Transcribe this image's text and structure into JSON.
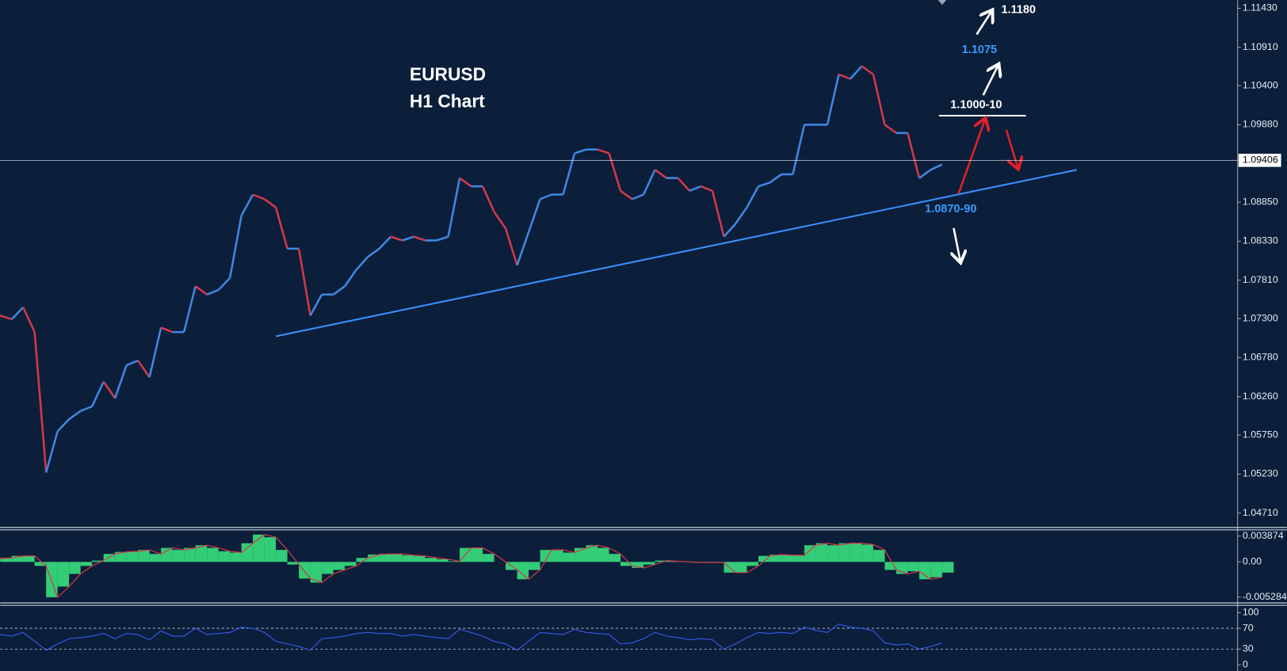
{
  "chart_data": [
    {
      "type": "line",
      "title": "EURUSD",
      "subtitle": "H1 Chart",
      "annotations": [
        "1.1180",
        "1.1075",
        "1.1000-10",
        "1.0870-90"
      ],
      "current_price": 1.09406,
      "ylim": [
        1.0452,
        1.1154
      ],
      "yticks": [
        {
          "value": 1.1143,
          "label": "1.11430"
        },
        {
          "value": 1.1091,
          "label": "1.10910"
        },
        {
          "value": 1.104,
          "label": "1.10400"
        },
        {
          "value": 1.0988,
          "label": "1.09880"
        },
        {
          "value": 1.0885,
          "label": "1.08850"
        },
        {
          "value": 1.0833,
          "label": "1.08330"
        },
        {
          "value": 1.0781,
          "label": "1.07810"
        },
        {
          "value": 1.073,
          "label": "1.07300"
        },
        {
          "value": 1.0678,
          "label": "1.06780"
        },
        {
          "value": 1.0626,
          "label": "1.06260"
        },
        {
          "value": 1.0575,
          "label": "1.05750"
        },
        {
          "value": 1.0523,
          "label": "1.05230"
        },
        {
          "value": 1.0471,
          "label": "1.04710"
        }
      ],
      "series": [
        {
          "up_color": "#3f86e0",
          "down_color": "#d0394a",
          "values": [
            1.0734,
            1.0729,
            1.0745,
            1.0712,
            1.0525,
            1.058,
            1.0596,
            1.0607,
            1.0613,
            1.0646,
            1.0624,
            1.0668,
            1.0674,
            1.0652,
            1.0718,
            1.0712,
            1.0712,
            1.0773,
            1.0762,
            1.0768,
            1.0784,
            1.0867,
            1.0895,
            1.0889,
            1.0878,
            1.0823,
            1.0823,
            1.0734,
            1.0762,
            1.0762,
            1.0773,
            1.0795,
            1.0812,
            1.0823,
            1.0839,
            1.0834,
            1.0839,
            1.0834,
            1.0834,
            1.0839,
            1.0917,
            1.0906,
            1.0906,
            1.0872,
            1.085,
            1.0801,
            1.0845,
            1.0889,
            1.0895,
            1.0895,
            1.095,
            1.0955,
            1.0955,
            1.095,
            1.09,
            1.0889,
            1.0895,
            1.0928,
            1.0917,
            1.0917,
            1.09,
            1.0906,
            1.09,
            1.0839,
            1.0856,
            1.0878,
            1.0906,
            1.0911,
            1.0922,
            1.0922,
            1.0988,
            1.0988,
            1.0988,
            1.1055,
            1.1049,
            1.1066,
            1.1055,
            1.0988,
            1.0977,
            1.0977,
            1.0917,
            1.0928,
            1.0935
          ]
        }
      ]
    },
    {
      "type": "bar",
      "ylim": [
        -0.00615,
        0.0048
      ],
      "yticks": [
        0.003874,
        {
          "value": 0,
          "label": "0.00"
        },
        -0.005284
      ],
      "series": [
        {
          "color": "#33cc77",
          "values": [
            0.0006,
            0.0009,
            0.0009,
            -0.0006,
            -0.0053,
            -0.0037,
            -0.0018,
            -0.0006,
            0.0002,
            0.0012,
            0.0015,
            0.0016,
            0.0018,
            0.0012,
            0.0021,
            0.0018,
            0.0021,
            0.0025,
            0.0021,
            0.0016,
            0.0014,
            0.0028,
            0.0041,
            0.0037,
            0.0018,
            -0.0004,
            -0.0025,
            -0.0031,
            -0.0018,
            -0.0012,
            -0.0006,
            0.0006,
            0.0011,
            0.0012,
            0.0012,
            0.001,
            0.0009,
            0.0006,
            0.0004,
            0.0001,
            0.0021,
            0.0021,
            0.0012,
            0,
            -0.0012,
            -0.0026,
            -0.0012,
            0.0018,
            0.0018,
            0.0014,
            0.0021,
            0.0025,
            0.0021,
            0.0012,
            -0.0006,
            -0.0009,
            -0.0004,
            0.0002,
            0.0001,
            0,
            -0.0001,
            -0.0001,
            -0.0001,
            -0.0016,
            -0.0016,
            -0.0006,
            0.0009,
            0.0011,
            0.001,
            0.001,
            0.0025,
            0.0028,
            0.0025,
            0.0028,
            0.0028,
            0.0026,
            0.0018,
            -0.0012,
            -0.0018,
            -0.0014,
            -0.0026,
            -0.0023,
            -0.0016
          ]
        },
        {
          "color": "#d0394a",
          "line": true,
          "values": [
            0.0005,
            0.0006,
            0.0009,
            0.0009,
            -0.0006,
            -0.0053,
            -0.0037,
            -0.0018,
            -0.0006,
            0.0002,
            0.0012,
            0.0015,
            0.0016,
            0.0018,
            0.0012,
            0.0021,
            0.0018,
            0.0021,
            0.0025,
            0.0021,
            0.0016,
            0.0014,
            0.0028,
            0.0041,
            0.0037,
            0.0018,
            -0.0004,
            -0.0025,
            -0.0031,
            -0.0018,
            -0.0012,
            -0.0006,
            0.0006,
            0.0011,
            0.0012,
            0.0012,
            0.001,
            0.0009,
            0.0006,
            0.0004,
            0.0001,
            0.0021,
            0.0021,
            0.0012,
            0,
            -0.0012,
            -0.0026,
            -0.0012,
            0.0018,
            0.0018,
            0.0014,
            0.0021,
            0.0025,
            0.0021,
            0.0012,
            -0.0006,
            -0.0009,
            -0.0004,
            0.0002,
            0.0001,
            0,
            -0.0001,
            -0.0001,
            -0.0001,
            -0.0016,
            -0.0016,
            -0.0006,
            0.0009,
            0.0011,
            0.001,
            0.001,
            0.0025,
            0.0028,
            0.0025,
            0.0028,
            0.0028,
            0.0026,
            0.0018,
            -0.0012,
            -0.0018,
            -0.0014,
            -0.0026,
            -0.0023
          ]
        }
      ]
    },
    {
      "type": "line",
      "ylim": [
        -12,
        114
      ],
      "yticks": [
        100,
        70,
        30,
        0
      ],
      "levels": [
        70,
        30
      ],
      "series": [
        {
          "color": "#3355dd",
          "values": [
            58,
            55,
            62,
            45,
            28,
            40,
            50,
            52,
            55,
            60,
            50,
            60,
            58,
            48,
            65,
            55,
            55,
            70,
            58,
            60,
            62,
            72,
            70,
            62,
            45,
            40,
            35,
            28,
            50,
            52,
            55,
            60,
            62,
            60,
            60,
            55,
            58,
            55,
            52,
            50,
            68,
            62,
            55,
            45,
            40,
            28,
            45,
            62,
            60,
            58,
            68,
            62,
            60,
            58,
            40,
            42,
            50,
            62,
            55,
            52,
            48,
            50,
            48,
            30,
            40,
            52,
            62,
            60,
            62,
            60,
            72,
            66,
            62,
            78,
            72,
            70,
            65,
            42,
            38,
            40,
            30,
            35,
            42
          ]
        }
      ]
    }
  ]
}
